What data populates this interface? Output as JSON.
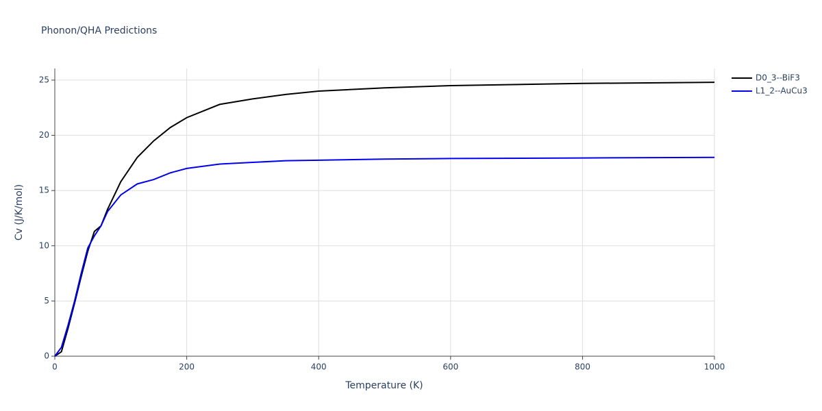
{
  "chart_data": {
    "type": "line",
    "title": "Phonon/QHA Predictions",
    "x_label": "Temperature (K)",
    "y_label": "Cv (J/K/mol)",
    "x": [
      0,
      10,
      20,
      30,
      40,
      50,
      60,
      70,
      80,
      100,
      125,
      150,
      175,
      200,
      250,
      300,
      350,
      400,
      500,
      600,
      800,
      1000
    ],
    "series": [
      {
        "name": "D0_3--BiF3",
        "color": "#000000",
        "values": [
          0,
          0.4,
          2.5,
          4.8,
          7.2,
          9.5,
          11.3,
          11.8,
          13.3,
          15.8,
          18.0,
          19.5,
          20.7,
          21.6,
          22.8,
          23.3,
          23.7,
          24.0,
          24.3,
          24.5,
          24.7,
          24.8
        ]
      },
      {
        "name": "L1_2--AuCu3",
        "color": "#0000ee",
        "values": [
          0,
          0.8,
          2.8,
          5.0,
          7.5,
          9.8,
          10.9,
          11.8,
          13.1,
          14.6,
          15.6,
          16.0,
          16.6,
          17.0,
          17.4,
          17.55,
          17.7,
          17.75,
          17.85,
          17.9,
          17.95,
          18.0
        ]
      }
    ],
    "xlim": [
      0,
      1000
    ],
    "xticks": [
      0,
      200,
      400,
      600,
      800,
      1000
    ],
    "ylim": [
      0,
      26.05
    ],
    "yticks": [
      0,
      5,
      10,
      15,
      20,
      25
    ],
    "grid": true
  }
}
